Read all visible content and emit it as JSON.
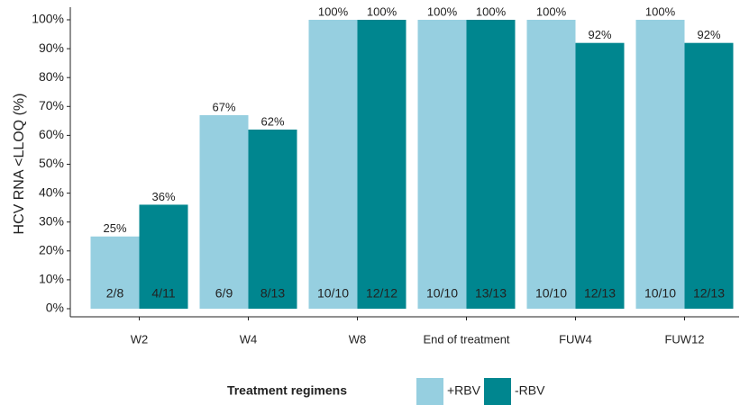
{
  "chart_data": {
    "type": "bar",
    "y_label": "HCV RNA <LLOQ (%)",
    "categories": [
      "W2",
      "W4",
      "W8",
      "End of treatment",
      "FUW4",
      "FUW12"
    ],
    "series": [
      {
        "name": "+RBV",
        "color": "#96cfe0",
        "values": [
          25,
          67,
          100,
          100,
          100,
          100
        ],
        "value_labels": [
          "25%",
          "67%",
          "100%",
          "100%",
          "100%",
          "100%"
        ],
        "bar_labels": [
          "2/8",
          "6/9",
          "10/10",
          "10/10",
          "10/10",
          "10/10"
        ]
      },
      {
        "name": "-RBV",
        "color": "#00868f",
        "values": [
          36,
          62,
          100,
          100,
          92,
          92
        ],
        "value_labels": [
          "36%",
          "62%",
          "100%",
          "100%",
          "92%",
          "92%"
        ],
        "bar_labels": [
          "4/11",
          "8/13",
          "12/12",
          "13/13",
          "12/13",
          "12/13"
        ]
      }
    ],
    "ylim": [
      0,
      100
    ],
    "yticks": [
      {
        "value": 0,
        "label": "0%"
      },
      {
        "value": 10,
        "label": "10%"
      },
      {
        "value": 20,
        "label": "20%"
      },
      {
        "value": 30,
        "label": "30%"
      },
      {
        "value": 40,
        "label": "40%"
      },
      {
        "value": 50,
        "label": "50%"
      },
      {
        "value": 60,
        "label": "60%"
      },
      {
        "value": 70,
        "label": "70%"
      },
      {
        "value": 80,
        "label": "80%"
      },
      {
        "value": 90,
        "label": "90%"
      },
      {
        "value": 100,
        "label": "100%"
      }
    ],
    "legend_title": "Treatment regimens",
    "legend_position": "bottom"
  }
}
